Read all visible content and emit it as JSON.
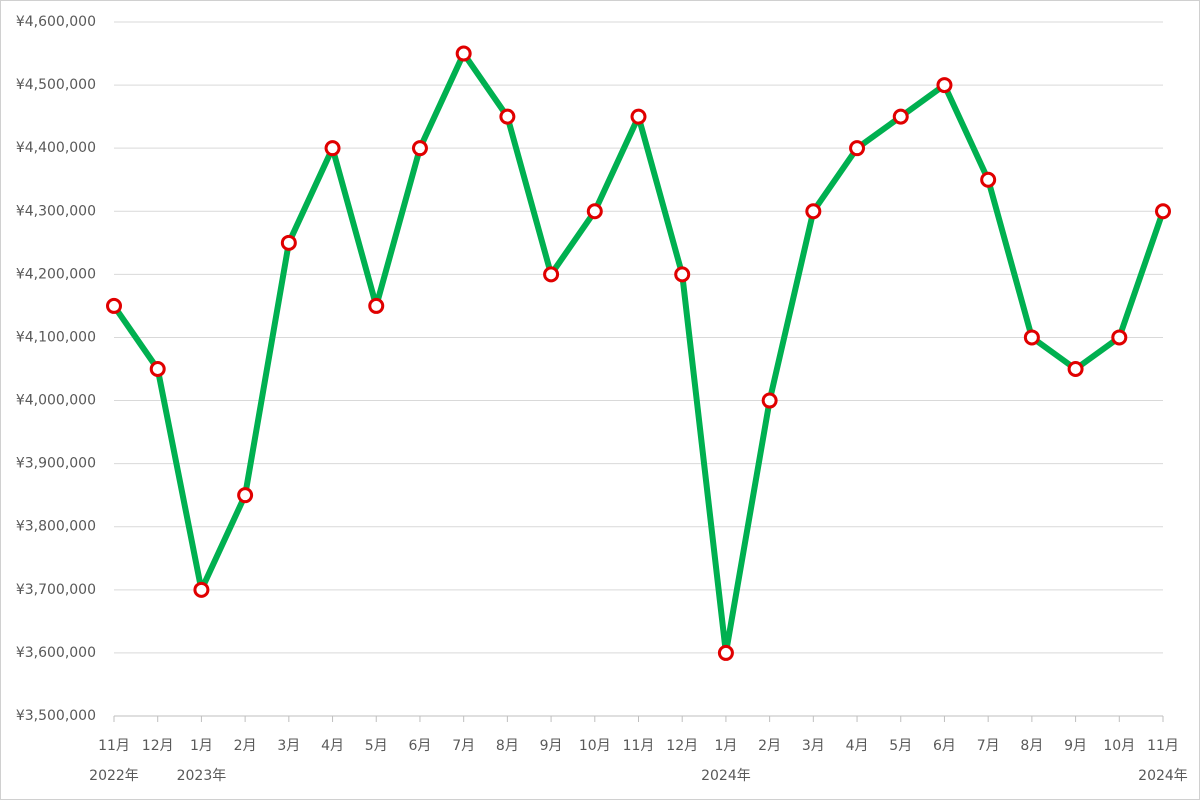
{
  "chart_data": {
    "type": "line",
    "categories": [
      "11月",
      "12月",
      "1月",
      "2月",
      "3月",
      "4月",
      "5月",
      "6月",
      "7月",
      "8月",
      "9月",
      "10月",
      "11月",
      "12月",
      "1月",
      "2月",
      "3月",
      "4月",
      "5月",
      "6月",
      "7月",
      "8月",
      "9月",
      "10月",
      "11月"
    ],
    "year_labels": [
      "2022年",
      null,
      "2023年",
      null,
      null,
      null,
      null,
      null,
      null,
      null,
      null,
      null,
      null,
      null,
      "2024年",
      null,
      null,
      null,
      null,
      null,
      null,
      null,
      null,
      null,
      "2024年"
    ],
    "series": [
      {
        "color": "#00b050",
        "marker_color": "#e00000",
        "values": [
          4150000,
          4050000,
          3700000,
          3850000,
          4250000,
          4400000,
          4150000,
          4400000,
          4550000,
          4450000,
          4200000,
          4300000,
          4450000,
          4200000,
          3600000,
          4000000,
          4300000,
          4400000,
          4450000,
          4500000,
          4350000,
          4100000,
          4050000,
          4100000,
          4300000
        ]
      }
    ],
    "ylim": [
      3500000,
      4600000
    ],
    "yticks": [
      {
        "value": 3500000,
        "label": "¥3,500,000"
      },
      {
        "value": 3600000,
        "label": "¥3,600,000"
      },
      {
        "value": 3700000,
        "label": "¥3,700,000"
      },
      {
        "value": 3800000,
        "label": "¥3,800,000"
      },
      {
        "value": 3900000,
        "label": "¥3,900,000"
      },
      {
        "value": 4000000,
        "label": "¥4,000,000"
      },
      {
        "value": 4100000,
        "label": "¥4,100,000"
      },
      {
        "value": 4200000,
        "label": "¥4,200,000"
      },
      {
        "value": 4300000,
        "label": "¥4,300,000"
      },
      {
        "value": 4400000,
        "label": "¥4,400,000"
      },
      {
        "value": 4500000,
        "label": "¥4,500,000"
      },
      {
        "value": 4600000,
        "label": "¥4,600,000"
      }
    ],
    "grid": true
  }
}
